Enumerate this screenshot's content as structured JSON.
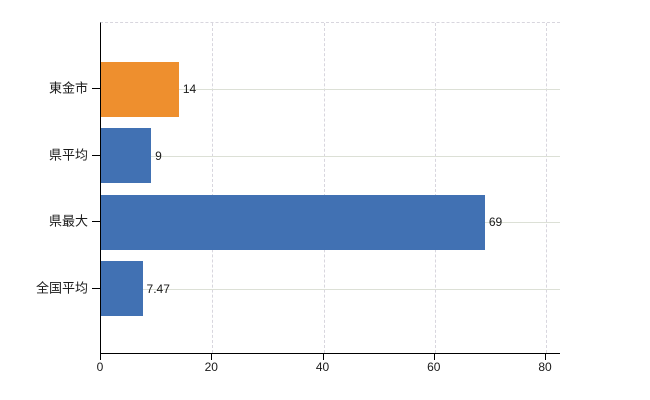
{
  "chart_data": {
    "type": "bar",
    "orientation": "horizontal",
    "title": "",
    "xlabel": "",
    "ylabel": "",
    "categories": [
      "東金市",
      "県平均",
      "県最大",
      "全国平均"
    ],
    "values": [
      14,
      9,
      69,
      7.47
    ],
    "value_labels": [
      "14",
      "9",
      "69",
      "7.47"
    ],
    "bar_colors": [
      "#ee8f2e",
      "#4171b3",
      "#4171b3",
      "#4171b3"
    ],
    "xlim": [
      0,
      80
    ],
    "x_ticks": [
      0,
      20,
      40,
      60,
      80
    ],
    "x_tick_labels": [
      "0",
      "20",
      "40",
      "60",
      "80"
    ],
    "grid": true,
    "legend_position": "none"
  },
  "colors": {
    "background": "#ffffff",
    "axis": "#000000",
    "text": "#1a1a1a",
    "highlight_bar": "#ee8f2e",
    "default_bar": "#4171b3",
    "h_gridline": "#dce0d6",
    "v_gridline": "#d8d6de"
  }
}
